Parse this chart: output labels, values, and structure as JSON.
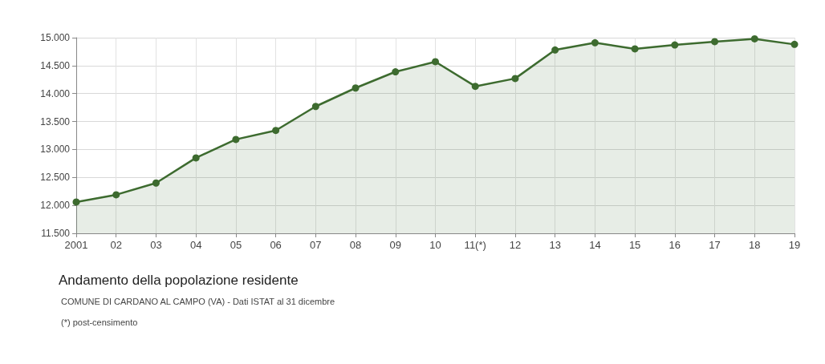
{
  "chart_data": {
    "type": "area",
    "title": "Andamento della popolazione residente",
    "categories": [
      "2001",
      "02",
      "03",
      "04",
      "05",
      "06",
      "07",
      "08",
      "09",
      "10",
      "11(*)",
      "12",
      "13",
      "14",
      "15",
      "16",
      "17",
      "18",
      "19"
    ],
    "series": [
      {
        "color": "#3d6b2f",
        "values": [
          12060,
          12190,
          12400,
          12850,
          13180,
          13340,
          13770,
          14100,
          14390,
          14570,
          14130,
          14270,
          14780,
          14910,
          14800,
          14870,
          14930,
          14980,
          14880
        ]
      }
    ],
    "ylim": [
      11500,
      15000
    ],
    "yticks": [
      {
        "value": 11500,
        "label": "11.500"
      },
      {
        "value": 12000,
        "label": "12.000"
      },
      {
        "value": 12500,
        "label": "12.500"
      },
      {
        "value": 13000,
        "label": "13.000"
      },
      {
        "value": 13500,
        "label": "13.500"
      },
      {
        "value": 14000,
        "label": "14.000"
      },
      {
        "value": 14500,
        "label": "14.500"
      },
      {
        "value": 15000,
        "label": "15.000"
      }
    ],
    "grid": true,
    "marker": "circle",
    "line_style": "solid",
    "annotations": [
      "COMUNE DI CARDANO AL CAMPO (VA) - Dati ISTAT al 31 dicembre",
      "(*) post-censimento"
    ]
  }
}
